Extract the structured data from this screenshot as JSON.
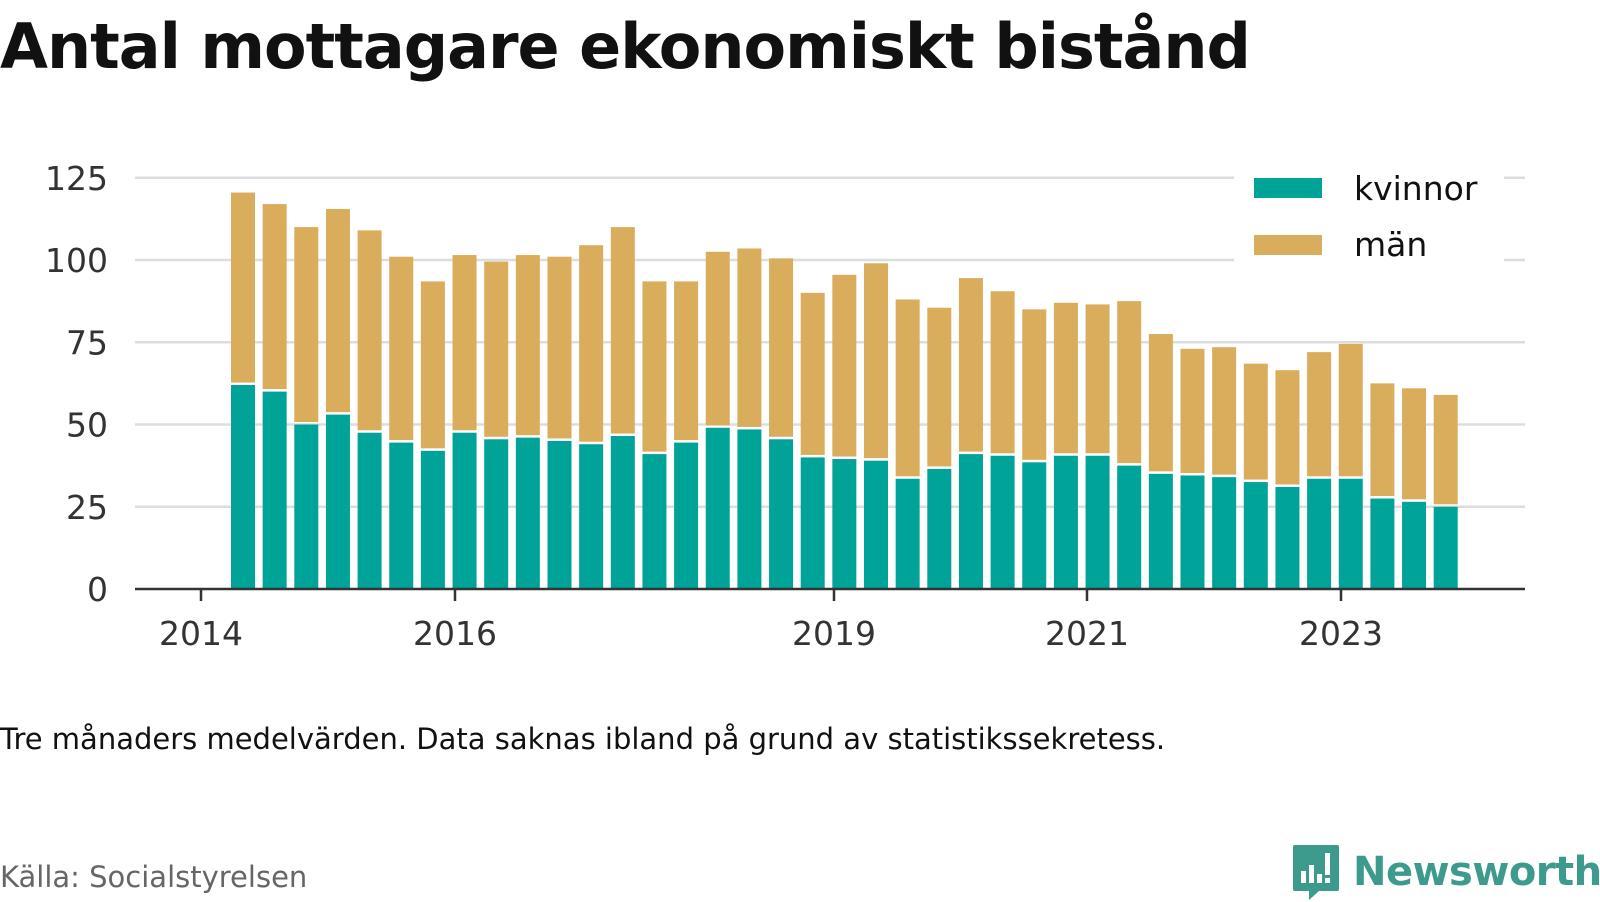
{
  "title": "Antal mottagare ekonomiskt bistånd",
  "caption": "Tre månaders medelvärden. Data saknas ibland på grund av statistikssekretess.",
  "source": "Källa: Socialstyrelsen",
  "brand": "Newsworthy",
  "colors": {
    "kvinnor": "#00a398",
    "man": "#d9ad5c",
    "grid": "#dddddd",
    "axis": "#333333",
    "brand": "#3d9b8e"
  },
  "chart_data": {
    "type": "bar",
    "stacked": true,
    "y_ticks": [
      0,
      25,
      50,
      75,
      100,
      125
    ],
    "ylim": [
      0,
      127
    ],
    "x_tick_labels": [
      "2014",
      "2016",
      "2019",
      "2021",
      "2023"
    ],
    "legend_position": "top-right",
    "grid": true,
    "series": [
      {
        "name": "kvinnor",
        "values": [
          62,
          60,
          50,
          53,
          47.5,
          44.5,
          42,
          47.5,
          45.5,
          46,
          45,
          44,
          46.5,
          41,
          44.5,
          49,
          48.5,
          45.5,
          40,
          39.5,
          39,
          33.5,
          36.5,
          41,
          40.5,
          38.5,
          40.5,
          40.5,
          37.5,
          35,
          34.5,
          34,
          32.5,
          31,
          33.5,
          33.5,
          27.5,
          26.5,
          25
        ]
      },
      {
        "name": "män",
        "values": [
          58.5,
          57,
          60,
          62.5,
          61.5,
          56.5,
          51.5,
          54,
          54,
          55.5,
          56,
          60.5,
          63.5,
          52.5,
          49,
          53.5,
          55,
          55,
          50,
          56,
          60,
          54.5,
          49,
          53.5,
          50,
          46.5,
          46.5,
          46,
          50,
          42.5,
          38.5,
          39.5,
          36,
          35.5,
          38.5,
          41,
          35,
          34.5,
          34
        ]
      }
    ]
  }
}
